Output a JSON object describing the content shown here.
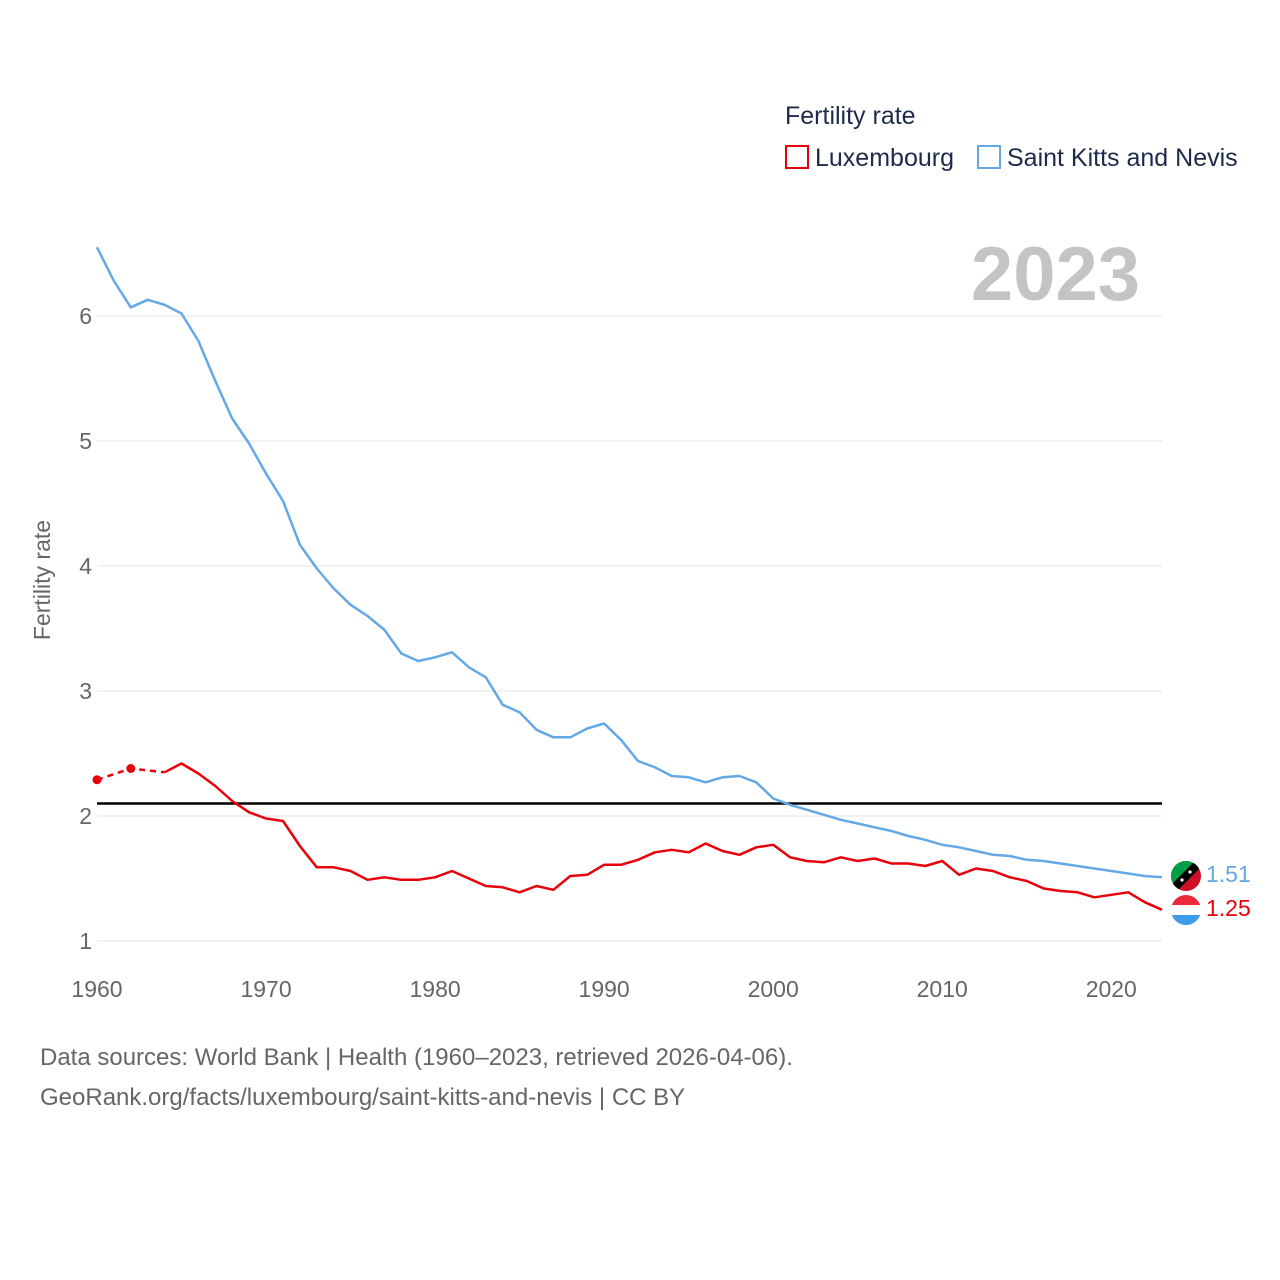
{
  "chart_data": {
    "type": "line",
    "legend_title": "Fertility rate",
    "year_label": "2023",
    "ylabel": "Fertility rate",
    "xlabel": "",
    "xlim": [
      1960,
      2023
    ],
    "ylim": [
      0.95,
      6.75
    ],
    "yticks": [
      1,
      2,
      3,
      4,
      5,
      6
    ],
    "xticks": [
      1960,
      1970,
      1980,
      1990,
      2000,
      2010,
      2020
    ],
    "reference_line": {
      "y": 2.1,
      "color": "#000000"
    },
    "series": [
      {
        "name": "Luxembourg",
        "color": "#e8000b",
        "end_label": "1.25",
        "dashed_points": [
          [
            1960,
            2.29
          ],
          [
            1962,
            2.38
          ],
          [
            1964,
            2.35
          ]
        ],
        "points": [
          [
            1964,
            2.35
          ],
          [
            1965,
            2.42
          ],
          [
            1966,
            2.34
          ],
          [
            1967,
            2.24
          ],
          [
            1968,
            2.12
          ],
          [
            1969,
            2.03
          ],
          [
            1970,
            1.98
          ],
          [
            1971,
            1.96
          ],
          [
            1972,
            1.76
          ],
          [
            1973,
            1.59
          ],
          [
            1974,
            1.59
          ],
          [
            1975,
            1.56
          ],
          [
            1976,
            1.49
          ],
          [
            1977,
            1.51
          ],
          [
            1978,
            1.49
          ],
          [
            1979,
            1.49
          ],
          [
            1980,
            1.51
          ],
          [
            1981,
            1.56
          ],
          [
            1982,
            1.5
          ],
          [
            1983,
            1.44
          ],
          [
            1984,
            1.43
          ],
          [
            1985,
            1.39
          ],
          [
            1986,
            1.44
          ],
          [
            1987,
            1.41
          ],
          [
            1988,
            1.52
          ],
          [
            1989,
            1.53
          ],
          [
            1990,
            1.61
          ],
          [
            1991,
            1.61
          ],
          [
            1992,
            1.65
          ],
          [
            1993,
            1.71
          ],
          [
            1994,
            1.73
          ],
          [
            1995,
            1.71
          ],
          [
            1996,
            1.78
          ],
          [
            1997,
            1.72
          ],
          [
            1998,
            1.69
          ],
          [
            1999,
            1.75
          ],
          [
            2000,
            1.77
          ],
          [
            2001,
            1.67
          ],
          [
            2002,
            1.64
          ],
          [
            2003,
            1.63
          ],
          [
            2004,
            1.67
          ],
          [
            2005,
            1.64
          ],
          [
            2006,
            1.66
          ],
          [
            2007,
            1.62
          ],
          [
            2008,
            1.62
          ],
          [
            2009,
            1.6
          ],
          [
            2010,
            1.64
          ],
          [
            2011,
            1.53
          ],
          [
            2012,
            1.58
          ],
          [
            2013,
            1.56
          ],
          [
            2014,
            1.51
          ],
          [
            2015,
            1.48
          ],
          [
            2016,
            1.42
          ],
          [
            2017,
            1.4
          ],
          [
            2018,
            1.39
          ],
          [
            2019,
            1.35
          ],
          [
            2020,
            1.37
          ],
          [
            2021,
            1.39
          ],
          [
            2022,
            1.31
          ],
          [
            2023,
            1.25
          ]
        ]
      },
      {
        "name": "Saint Kitts and Nevis",
        "color": "#64a8e6",
        "end_label": "1.51",
        "points": [
          [
            1960,
            6.55
          ],
          [
            1961,
            6.28
          ],
          [
            1962,
            6.07
          ],
          [
            1963,
            6.13
          ],
          [
            1964,
            6.09
          ],
          [
            1965,
            6.02
          ],
          [
            1966,
            5.8
          ],
          [
            1967,
            5.48
          ],
          [
            1968,
            5.18
          ],
          [
            1969,
            4.98
          ],
          [
            1970,
            4.74
          ],
          [
            1971,
            4.52
          ],
          [
            1972,
            4.17
          ],
          [
            1973,
            3.98
          ],
          [
            1974,
            3.82
          ],
          [
            1975,
            3.69
          ],
          [
            1976,
            3.6
          ],
          [
            1977,
            3.49
          ],
          [
            1978,
            3.3
          ],
          [
            1979,
            3.24
          ],
          [
            1980,
            3.27
          ],
          [
            1981,
            3.31
          ],
          [
            1982,
            3.19
          ],
          [
            1983,
            3.11
          ],
          [
            1984,
            2.89
          ],
          [
            1985,
            2.83
          ],
          [
            1986,
            2.69
          ],
          [
            1987,
            2.63
          ],
          [
            1988,
            2.63
          ],
          [
            1989,
            2.7
          ],
          [
            1990,
            2.74
          ],
          [
            1991,
            2.61
          ],
          [
            1992,
            2.44
          ],
          [
            1993,
            2.39
          ],
          [
            1994,
            2.32
          ],
          [
            1995,
            2.31
          ],
          [
            1996,
            2.27
          ],
          [
            1997,
            2.31
          ],
          [
            1998,
            2.32
          ],
          [
            1999,
            2.27
          ],
          [
            2000,
            2.14
          ],
          [
            2001,
            2.09
          ],
          [
            2002,
            2.05
          ],
          [
            2003,
            2.01
          ],
          [
            2004,
            1.97
          ],
          [
            2005,
            1.94
          ],
          [
            2006,
            1.91
          ],
          [
            2007,
            1.88
          ],
          [
            2008,
            1.84
          ],
          [
            2009,
            1.81
          ],
          [
            2010,
            1.77
          ],
          [
            2011,
            1.75
          ],
          [
            2012,
            1.72
          ],
          [
            2013,
            1.69
          ],
          [
            2014,
            1.68
          ],
          [
            2015,
            1.65
          ],
          [
            2016,
            1.64
          ],
          [
            2017,
            1.62
          ],
          [
            2018,
            1.6
          ],
          [
            2019,
            1.58
          ],
          [
            2020,
            1.56
          ],
          [
            2021,
            1.54
          ],
          [
            2022,
            1.52
          ],
          [
            2023,
            1.51
          ]
        ]
      }
    ]
  },
  "footer": {
    "line1": "Data sources: World Bank | Health (1960–2023, retrieved 2026-04-06).",
    "line2": "GeoRank.org/facts/luxembourg/saint-kitts-and-nevis | CC BY"
  }
}
